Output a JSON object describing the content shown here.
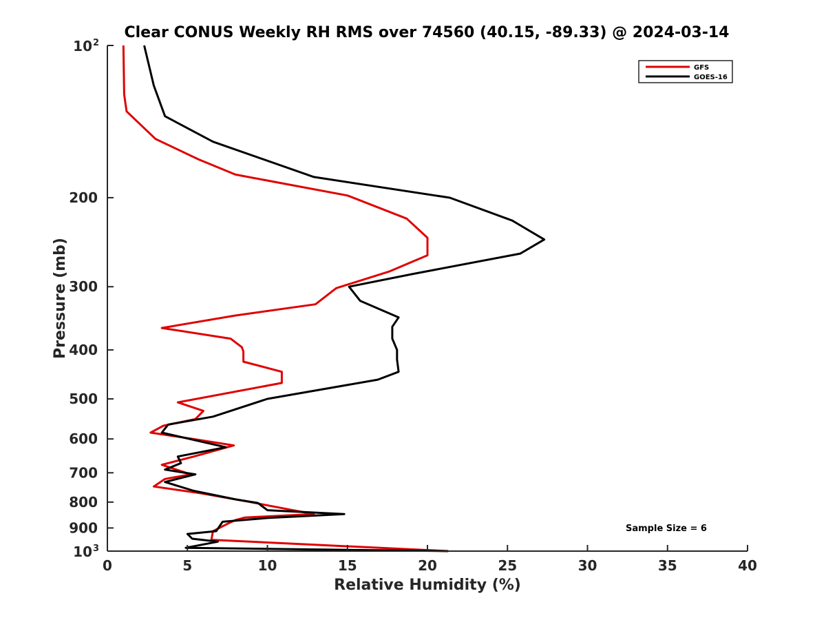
{
  "chart_data": {
    "type": "line",
    "title": "Clear CONUS Weekly RH RMS over 74560 (40.15, -89.33) @ 2024-03-14",
    "xlabel": "Relative Humidity (%)",
    "ylabel": "Pressure (mb)",
    "xlim": [
      0,
      40
    ],
    "ylim": [
      100,
      1000
    ],
    "yscale": "log",
    "y_reversed": true,
    "grid": false,
    "xticks": [
      0,
      5,
      10,
      15,
      20,
      25,
      30,
      35,
      40
    ],
    "xtick_labels": [
      "0",
      "5",
      "10",
      "15",
      "20",
      "25",
      "30",
      "35",
      "40"
    ],
    "yticks": [
      100,
      200,
      300,
      400,
      500,
      600,
      700,
      800,
      900,
      1000
    ],
    "ytick_labels": [
      {
        "base": "10",
        "exp": "2"
      },
      {
        "base": "200"
      },
      {
        "base": "300"
      },
      {
        "base": "400"
      },
      {
        "base": "500"
      },
      {
        "base": "600"
      },
      {
        "base": "700"
      },
      {
        "base": "800"
      },
      {
        "base": "900"
      },
      {
        "base": "10",
        "exp": "3"
      }
    ],
    "legend_position": "top-right",
    "series": [
      {
        "name": "GFS",
        "color": "#e00000",
        "points": [
          [
            1.0,
            100
          ],
          [
            1.05,
            125
          ],
          [
            1.2,
            135
          ],
          [
            3.0,
            153
          ],
          [
            5.7,
            168
          ],
          [
            8.0,
            180
          ],
          [
            15.0,
            198
          ],
          [
            18.7,
            220
          ],
          [
            20.0,
            240
          ],
          [
            20.0,
            260
          ],
          [
            17.6,
            280
          ],
          [
            14.3,
            302
          ],
          [
            13.0,
            325
          ],
          [
            8.0,
            342
          ],
          [
            3.4,
            362
          ],
          [
            7.7,
            380
          ],
          [
            8.4,
            395
          ],
          [
            8.5,
            403
          ],
          [
            8.5,
            422
          ],
          [
            10.9,
            442
          ],
          [
            10.9,
            465
          ],
          [
            4.4,
            508
          ],
          [
            6.0,
            528
          ],
          [
            5.5,
            548
          ],
          [
            3.5,
            565
          ],
          [
            2.7,
            583
          ],
          [
            5.8,
            603
          ],
          [
            7.9,
            618
          ],
          [
            5.4,
            650
          ],
          [
            3.4,
            675
          ],
          [
            5.2,
            705
          ],
          [
            3.6,
            720
          ],
          [
            2.9,
            745
          ],
          [
            5.8,
            768
          ],
          [
            8.5,
            795
          ],
          [
            12.9,
            845
          ],
          [
            8.6,
            858
          ],
          [
            8.0,
            868
          ],
          [
            7.6,
            880
          ],
          [
            6.6,
            913
          ],
          [
            6.5,
            950
          ],
          [
            21.3,
            1000
          ]
        ]
      },
      {
        "name": "GOES-16",
        "color": "#000000",
        "points": [
          [
            2.3,
            100
          ],
          [
            2.9,
            120
          ],
          [
            3.6,
            138
          ],
          [
            6.6,
            155
          ],
          [
            12.9,
            182
          ],
          [
            21.4,
            200
          ],
          [
            25.3,
            222
          ],
          [
            27.3,
            242
          ],
          [
            25.8,
            258
          ],
          [
            19.1,
            283
          ],
          [
            15.1,
            300
          ],
          [
            15.8,
            320
          ],
          [
            18.2,
            345
          ],
          [
            17.8,
            360
          ],
          [
            17.8,
            380
          ],
          [
            18.1,
            400
          ],
          [
            18.1,
            418
          ],
          [
            18.2,
            442
          ],
          [
            16.9,
            458
          ],
          [
            10.0,
            500
          ],
          [
            6.6,
            542
          ],
          [
            3.8,
            562
          ],
          [
            3.4,
            583
          ],
          [
            7.4,
            623
          ],
          [
            4.4,
            650
          ],
          [
            4.6,
            670
          ],
          [
            3.6,
            690
          ],
          [
            5.5,
            705
          ],
          [
            3.6,
            730
          ],
          [
            5.4,
            760
          ],
          [
            8.0,
            790
          ],
          [
            9.4,
            803
          ],
          [
            10.0,
            830
          ],
          [
            14.8,
            845
          ],
          [
            10.0,
            860
          ],
          [
            7.2,
            875
          ],
          [
            6.8,
            913
          ],
          [
            5.0,
            925
          ],
          [
            5.3,
            945
          ],
          [
            6.9,
            958
          ],
          [
            4.9,
            985
          ],
          [
            21.3,
            1000
          ]
        ]
      }
    ],
    "annotations": [
      "Sample Size = 6"
    ]
  }
}
